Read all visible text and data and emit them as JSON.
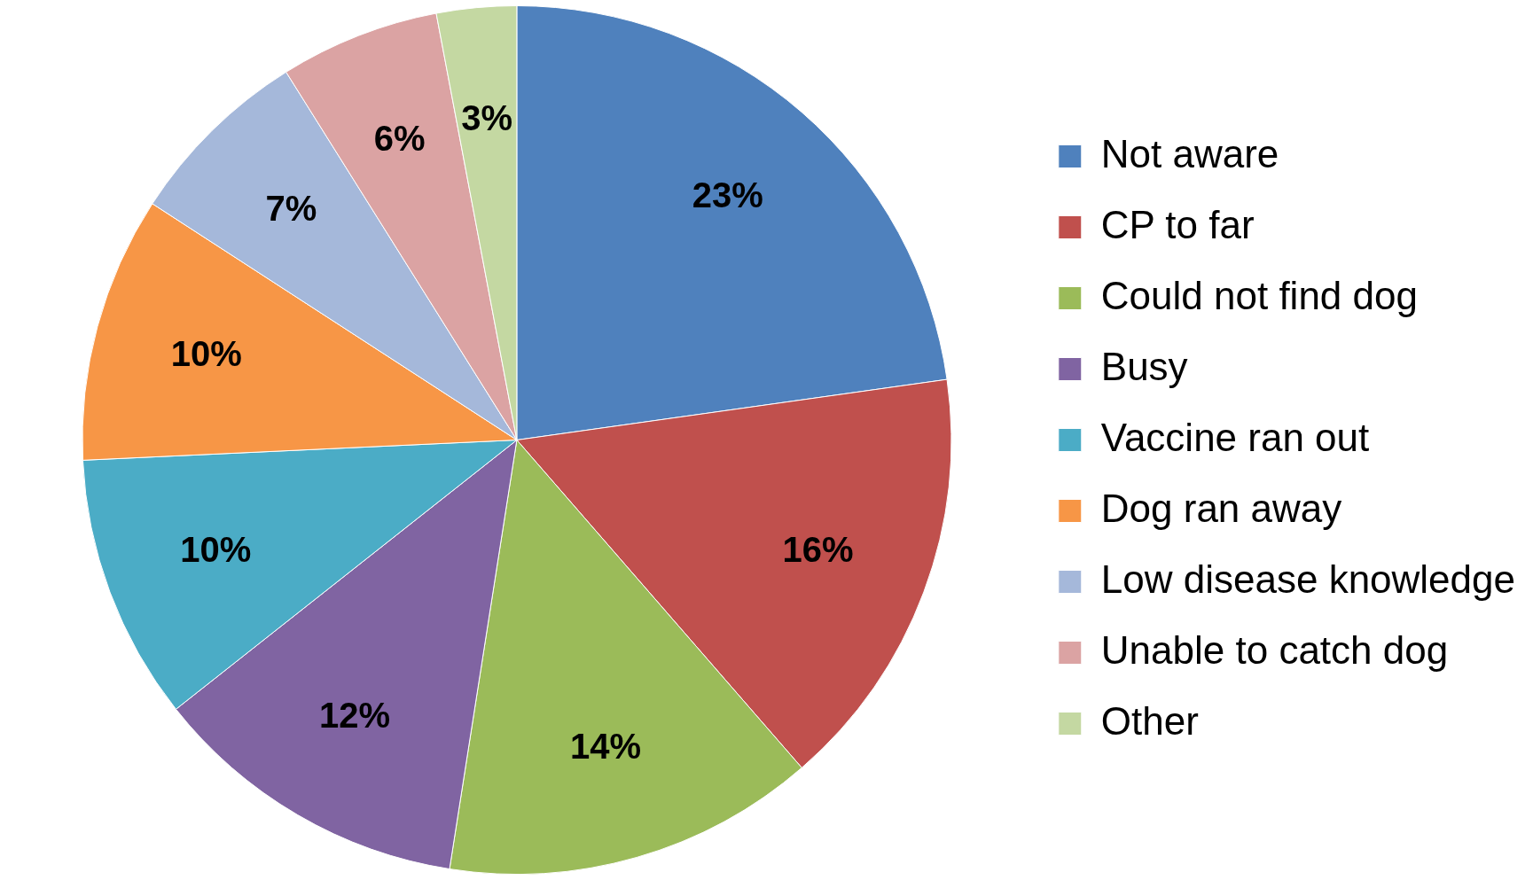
{
  "chart_data": {
    "type": "pie",
    "categories": [
      "Not aware",
      "CP to far",
      "Could not find dog",
      "Busy",
      "Vaccine ran out",
      "Dog ran away",
      "Low disease knowledge",
      "Unable to catch dog",
      "Other"
    ],
    "values": [
      23,
      16,
      14,
      12,
      10,
      10,
      7,
      6,
      3
    ],
    "value_labels": [
      "23%",
      "16%",
      "14%",
      "12%",
      "10%",
      "10%",
      "7%",
      "6%",
      "3%"
    ],
    "colors": [
      "#4f81bd",
      "#c0504d",
      "#9bbb59",
      "#8064a2",
      "#4bacc6",
      "#f79646",
      "#a5b8da",
      "#dba3a3",
      "#c4d8a2"
    ],
    "legend": "right"
  }
}
